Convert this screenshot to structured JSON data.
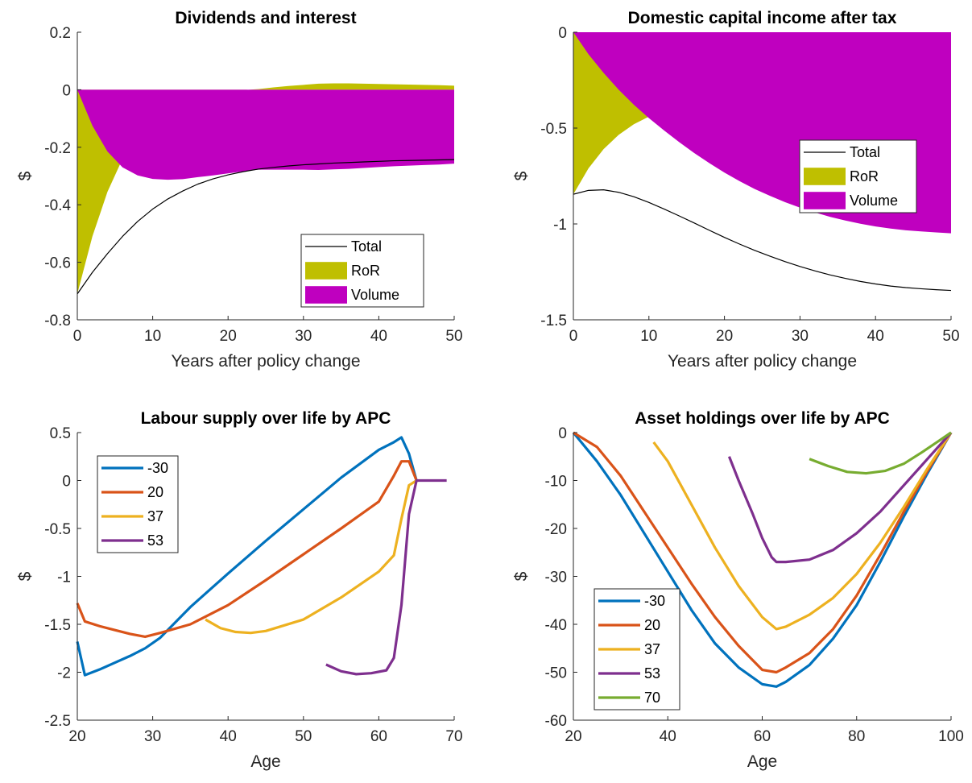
{
  "chart_data": [
    {
      "type": "area",
      "title": "Dividends and interest",
      "xlabel": "Years after policy change",
      "ylabel": "$",
      "xlim": [
        0,
        50
      ],
      "ylim": [
        -0.8,
        0.2
      ],
      "xticks": [
        0,
        10,
        20,
        30,
        40,
        50
      ],
      "yticks": [
        -0.8,
        -0.6,
        -0.4,
        -0.2,
        0,
        0.2
      ],
      "x": [
        0,
        2,
        4,
        6,
        8,
        10,
        12,
        14,
        16,
        18,
        20,
        22,
        24,
        26,
        28,
        30,
        32,
        34,
        36,
        38,
        40,
        42,
        44,
        46,
        48,
        50
      ],
      "series": [
        {
          "name": "Total",
          "style": "line",
          "color": "#000000",
          "values": [
            -0.71,
            -0.635,
            -0.57,
            -0.51,
            -0.458,
            -0.415,
            -0.38,
            -0.352,
            -0.328,
            -0.31,
            -0.296,
            -0.285,
            -0.276,
            -0.27,
            -0.265,
            -0.261,
            -0.258,
            -0.255,
            -0.253,
            -0.251,
            -0.249,
            -0.247,
            -0.246,
            -0.245,
            -0.244,
            -0.243
          ]
        },
        {
          "name": "RoR",
          "style": "area",
          "color": "#bfbf00",
          "values": [
            -0.71,
            -0.51,
            -0.355,
            -0.24,
            -0.16,
            -0.105,
            -0.067,
            -0.041,
            -0.024,
            -0.012,
            -0.005,
            -0.001,
            0.002,
            0.008,
            0.013,
            0.017,
            0.021,
            0.022,
            0.022,
            0.021,
            0.02,
            0.019,
            0.018,
            0.017,
            0.016,
            0.014
          ]
        },
        {
          "name": "Volume",
          "style": "area",
          "color": "#bf00bf",
          "values": [
            0,
            -0.125,
            -0.215,
            -0.27,
            -0.298,
            -0.31,
            -0.313,
            -0.311,
            -0.304,
            -0.298,
            -0.291,
            -0.284,
            -0.278,
            -0.278,
            -0.278,
            -0.278,
            -0.279,
            -0.277,
            -0.275,
            -0.272,
            -0.269,
            -0.266,
            -0.264,
            -0.262,
            -0.26,
            -0.257
          ]
        }
      ],
      "legend": {
        "entries": [
          "Total",
          "RoR",
          "Volume"
        ],
        "location": "bottom-right"
      }
    },
    {
      "type": "area",
      "title": "Domestic capital income after tax",
      "xlabel": "Years after policy change",
      "ylabel": "$",
      "xlim": [
        0,
        50
      ],
      "ylim": [
        -1.5,
        0
      ],
      "xticks": [
        0,
        10,
        20,
        30,
        40,
        50
      ],
      "yticks": [
        -1.5,
        -1,
        -0.5,
        0
      ],
      "x": [
        0,
        2,
        4,
        6,
        8,
        10,
        12,
        14,
        16,
        18,
        20,
        22,
        24,
        26,
        28,
        30,
        32,
        34,
        36,
        38,
        40,
        42,
        44,
        46,
        48,
        50
      ],
      "series": [
        {
          "name": "Total",
          "style": "line",
          "color": "#000000",
          "values": [
            -0.845,
            -0.825,
            -0.822,
            -0.835,
            -0.858,
            -0.888,
            -0.922,
            -0.958,
            -0.995,
            -1.033,
            -1.07,
            -1.105,
            -1.138,
            -1.168,
            -1.196,
            -1.222,
            -1.245,
            -1.266,
            -1.284,
            -1.3,
            -1.313,
            -1.324,
            -1.332,
            -1.338,
            -1.343,
            -1.347
          ]
        },
        {
          "name": "RoR",
          "style": "area",
          "color": "#bfbf00",
          "values": [
            -0.845,
            -0.71,
            -0.61,
            -0.535,
            -0.48,
            -0.44,
            -0.41,
            -0.385,
            -0.365,
            -0.35,
            -0.338,
            -0.328,
            -0.32,
            -0.315,
            -0.31,
            -0.307,
            -0.305,
            -0.303,
            -0.302,
            -0.301,
            -0.3,
            -0.3,
            -0.299,
            -0.299,
            -0.299,
            -0.298
          ]
        },
        {
          "name": "Volume",
          "style": "area",
          "color": "#bf00bf",
          "values": [
            0,
            -0.115,
            -0.212,
            -0.3,
            -0.378,
            -0.448,
            -0.512,
            -0.573,
            -0.63,
            -0.683,
            -0.732,
            -0.777,
            -0.818,
            -0.853,
            -0.886,
            -0.915,
            -0.94,
            -0.963,
            -0.982,
            -0.999,
            -1.013,
            -1.024,
            -1.033,
            -1.039,
            -1.044,
            -1.049
          ]
        }
      ],
      "legend": {
        "entries": [
          "Total",
          "RoR",
          "Volume"
        ],
        "location": "top-right"
      }
    },
    {
      "type": "line",
      "title": "Labour supply over life by APC",
      "xlabel": "Age",
      "ylabel": "$",
      "xlim": [
        20,
        70
      ],
      "ylim": [
        -2.5,
        0.5
      ],
      "xticks": [
        20,
        30,
        40,
        50,
        60,
        70
      ],
      "yticks": [
        -2.5,
        -2,
        -1.5,
        -1,
        -0.5,
        0,
        0.5
      ],
      "series": [
        {
          "name": "-30",
          "color": "#0072bd",
          "x": [
            20,
            21,
            23,
            25,
            27,
            29,
            31,
            35,
            40,
            45,
            50,
            55,
            60,
            62,
            63,
            64,
            65
          ],
          "values": [
            -1.68,
            -2.03,
            -1.97,
            -1.9,
            -1.83,
            -1.75,
            -1.64,
            -1.32,
            -0.97,
            -0.63,
            -0.3,
            0.03,
            0.32,
            0.4,
            0.45,
            0.28,
            0
          ]
        },
        {
          "name": "20",
          "color": "#d95319",
          "x": [
            20,
            21,
            23,
            25,
            27,
            29,
            31,
            35,
            40,
            45,
            50,
            55,
            60,
            62,
            63,
            64,
            65
          ],
          "values": [
            -1.28,
            -1.47,
            -1.52,
            -1.56,
            -1.6,
            -1.63,
            -1.59,
            -1.5,
            -1.3,
            -1.04,
            -0.77,
            -0.5,
            -0.22,
            0.05,
            0.2,
            0.2,
            0
          ]
        },
        {
          "name": "37",
          "color": "#edb120",
          "x": [
            37,
            39,
            41,
            43,
            45,
            50,
            55,
            60,
            62,
            63,
            64,
            65
          ],
          "values": [
            -1.45,
            -1.54,
            -1.58,
            -1.59,
            -1.57,
            -1.45,
            -1.22,
            -0.95,
            -0.78,
            -0.4,
            -0.05,
            0
          ]
        },
        {
          "name": "53",
          "color": "#7e2f8e",
          "x": [
            53,
            55,
            57,
            59,
            61,
            62,
            63,
            64,
            65,
            66,
            69
          ],
          "values": [
            -1.92,
            -1.99,
            -2.02,
            -2.01,
            -1.98,
            -1.85,
            -1.3,
            -0.35,
            0,
            0,
            0
          ]
        }
      ],
      "legend": {
        "entries": [
          "-30",
          "20",
          "37",
          "53"
        ],
        "location": "top-left"
      }
    },
    {
      "type": "line",
      "title": "Asset holdings over life by APC",
      "xlabel": "Age",
      "ylabel": "$",
      "xlim": [
        20,
        100
      ],
      "ylim": [
        -60,
        0
      ],
      "xticks": [
        20,
        40,
        60,
        80,
        100
      ],
      "yticks": [
        -60,
        -50,
        -40,
        -30,
        -20,
        -10,
        0
      ],
      "series": [
        {
          "name": "-30",
          "color": "#0072bd",
          "x": [
            20,
            25,
            30,
            35,
            40,
            45,
            50,
            55,
            60,
            63,
            65,
            70,
            75,
            80,
            85,
            90,
            95,
            100
          ],
          "values": [
            0,
            -6,
            -13,
            -21,
            -29,
            -37,
            -44,
            -49,
            -52.5,
            -53,
            -52,
            -48.5,
            -43,
            -36,
            -27,
            -17.5,
            -8.5,
            0
          ]
        },
        {
          "name": "20",
          "color": "#d95319",
          "x": [
            20,
            25,
            30,
            35,
            40,
            45,
            50,
            55,
            60,
            63,
            65,
            70,
            75,
            80,
            85,
            90,
            95,
            100
          ],
          "values": [
            0,
            -3,
            -9,
            -16.5,
            -24,
            -31.5,
            -38.5,
            -44.5,
            -49.5,
            -50,
            -49,
            -46,
            -41,
            -34,
            -25.5,
            -16.5,
            -8,
            0
          ]
        },
        {
          "name": "37",
          "color": "#edb120",
          "x": [
            37,
            40,
            45,
            50,
            55,
            60,
            63,
            65,
            70,
            75,
            80,
            85,
            90,
            95,
            100
          ],
          "values": [
            -2,
            -6,
            -15,
            -24,
            -32,
            -38.5,
            -41,
            -40.5,
            -38,
            -34.5,
            -29.5,
            -23,
            -15.5,
            -7.5,
            0
          ]
        },
        {
          "name": "53",
          "color": "#7e2f8e",
          "x": [
            53,
            55,
            58,
            60,
            62,
            63,
            65,
            70,
            75,
            80,
            85,
            90,
            95,
            100
          ],
          "values": [
            -5,
            -10,
            -17,
            -22,
            -26,
            -27,
            -27,
            -26.5,
            -24.5,
            -21,
            -16.5,
            -11,
            -5.5,
            0
          ]
        },
        {
          "name": "70",
          "color": "#77ac30",
          "x": [
            70,
            74,
            78,
            82,
            86,
            90,
            94,
            97,
            100
          ],
          "values": [
            -5.5,
            -7,
            -8.2,
            -8.5,
            -8,
            -6.5,
            -4,
            -2,
            0
          ]
        }
      ],
      "legend": {
        "entries": [
          "-30",
          "20",
          "37",
          "53",
          "70"
        ],
        "location": "bottom-left"
      }
    }
  ]
}
